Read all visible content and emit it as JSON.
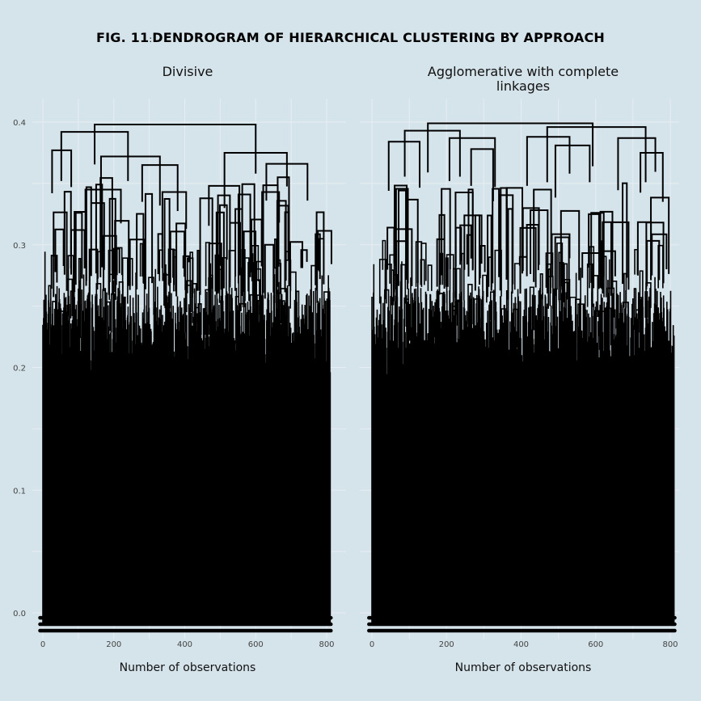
{
  "figure": {
    "title_prefix": "FIG. 11",
    "title_separator": ":",
    "title_main": "DENDROGRAM OF HIERARCHICAL CLUSTERING BY APPROACH"
  },
  "chart_data": [
    {
      "type": "dendrogram",
      "title": "Divisive",
      "xlabel": "Number of observations",
      "ylabel": "",
      "xlim": [
        0,
        810
      ],
      "ylim": [
        0,
        0.4
      ],
      "x_ticks": [
        0,
        200,
        400,
        600,
        800
      ],
      "y_ticks": [
        0.0,
        0.1,
        0.2,
        0.3,
        0.4
      ],
      "n_leaves": 810,
      "grid": true,
      "top_merges": [
        {
          "height": 0.398,
          "x": 146,
          "x2": 600
        },
        {
          "height": 0.392,
          "x": 52,
          "x2": 240
        },
        {
          "height": 0.377,
          "x": 26,
          "x2": 80
        },
        {
          "height": 0.372,
          "x": 164,
          "x2": 330
        },
        {
          "height": 0.375,
          "x": 512,
          "x2": 688
        },
        {
          "height": 0.366,
          "x": 630,
          "x2": 746
        },
        {
          "height": 0.365,
          "x": 280,
          "x2": 380
        },
        {
          "height": 0.348,
          "x": 468,
          "x2": 554
        },
        {
          "height": 0.345,
          "x": 120,
          "x2": 220
        },
        {
          "height": 0.343,
          "x": 337,
          "x2": 404
        },
        {
          "height": 0.343,
          "x": 618,
          "x2": 666
        }
      ]
    },
    {
      "type": "dendrogram",
      "title": "Agglomerative with complete linkages",
      "xlabel": "Number of observations",
      "ylabel": "",
      "xlim": [
        0,
        810
      ],
      "ylim": [
        0,
        0.4
      ],
      "x_ticks": [
        0,
        200,
        400,
        600,
        800
      ],
      "y_ticks": [
        0.0,
        0.1,
        0.2,
        0.3,
        0.4
      ],
      "n_leaves": 810,
      "grid": true,
      "top_merges": [
        {
          "height": 0.399,
          "x": 150,
          "x2": 592
        },
        {
          "height": 0.393,
          "x": 88,
          "x2": 236
        },
        {
          "height": 0.396,
          "x": 470,
          "x2": 734
        },
        {
          "height": 0.384,
          "x": 45,
          "x2": 128
        },
        {
          "height": 0.387,
          "x": 208,
          "x2": 330
        },
        {
          "height": 0.388,
          "x": 416,
          "x2": 530
        },
        {
          "height": 0.387,
          "x": 660,
          "x2": 760
        },
        {
          "height": 0.378,
          "x": 266,
          "x2": 325
        },
        {
          "height": 0.381,
          "x": 492,
          "x2": 584
        },
        {
          "height": 0.375,
          "x": 720,
          "x2": 780
        }
      ]
    }
  ]
}
